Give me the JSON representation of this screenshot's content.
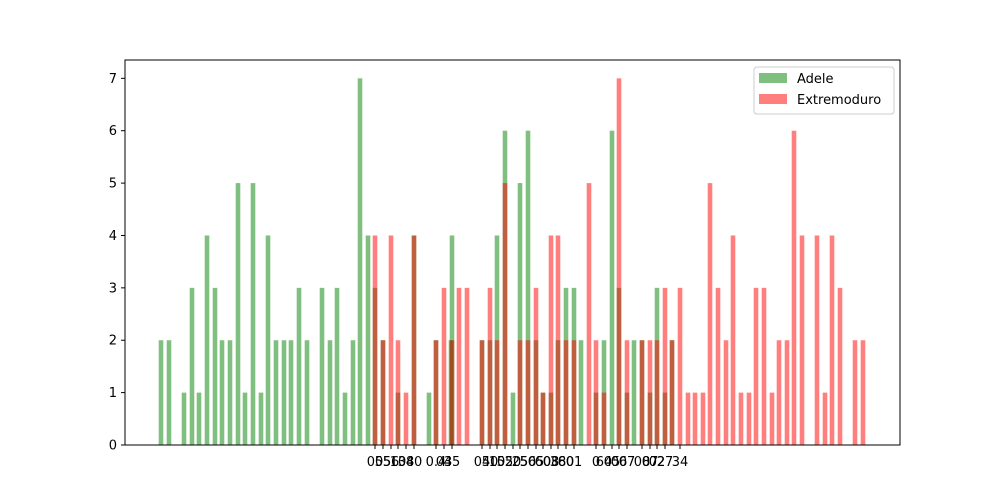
{
  "chart_data": {
    "type": "bar",
    "title": "",
    "xlabel": "",
    "ylabel": "",
    "ylim": [
      0,
      7.35
    ],
    "yticks": [
      0,
      1,
      2,
      3,
      4,
      5,
      6,
      7
    ],
    "legend": "top-right",
    "grid": false,
    "series": [
      {
        "name": "Adele",
        "color": "#008000",
        "opacity": 0.5,
        "values": [
          [
            161,
            2
          ],
          [
            169,
            2
          ],
          [
            184,
            1
          ],
          [
            192,
            3
          ],
          [
            199,
            1
          ],
          [
            207,
            4
          ],
          [
            215,
            3
          ],
          [
            222,
            2
          ],
          [
            230,
            2
          ],
          [
            238,
            5
          ],
          [
            245,
            1
          ],
          [
            253,
            5
          ],
          [
            261,
            1
          ],
          [
            268,
            4
          ],
          [
            276,
            2
          ],
          [
            284,
            2
          ],
          [
            291,
            2
          ],
          [
            299,
            3
          ],
          [
            307,
            2
          ],
          [
            322,
            3
          ],
          [
            330,
            2
          ],
          [
            337,
            3
          ],
          [
            345,
            1
          ],
          [
            353,
            2
          ],
          [
            360,
            7
          ],
          [
            368,
            4
          ],
          [
            375,
            3
          ],
          [
            383,
            2
          ],
          [
            398,
            1
          ],
          [
            414,
            4
          ],
          [
            429,
            1
          ],
          [
            436,
            2
          ],
          [
            451,
            2
          ],
          [
            452,
            4
          ],
          [
            482,
            2
          ],
          [
            490,
            2
          ],
          [
            497,
            4
          ],
          [
            505,
            6
          ],
          [
            513,
            1
          ],
          [
            520,
            5
          ],
          [
            528,
            6
          ],
          [
            536,
            2
          ],
          [
            543,
            1
          ],
          [
            551,
            1
          ],
          [
            558,
            2
          ],
          [
            566,
            3
          ],
          [
            574,
            3
          ],
          [
            581,
            2
          ],
          [
            596,
            1
          ],
          [
            604,
            2
          ],
          [
            612,
            6
          ],
          [
            619,
            3
          ],
          [
            627,
            1
          ],
          [
            634,
            2
          ],
          [
            642,
            2
          ],
          [
            650,
            1
          ],
          [
            657,
            3
          ],
          [
            665,
            1
          ],
          [
            672,
            2
          ]
        ]
      },
      {
        "name": "Extremoduro",
        "color": "#ff0000",
        "opacity": 0.5,
        "values": [
          [
            375,
            4
          ],
          [
            383,
            2
          ],
          [
            391,
            4
          ],
          [
            398,
            2
          ],
          [
            406,
            1
          ],
          [
            414,
            4
          ],
          [
            436,
            2
          ],
          [
            444,
            3
          ],
          [
            452,
            2
          ],
          [
            459,
            3
          ],
          [
            467,
            3
          ],
          [
            482,
            2
          ],
          [
            490,
            3
          ],
          [
            497,
            2
          ],
          [
            505,
            5
          ],
          [
            520,
            2
          ],
          [
            528,
            2
          ],
          [
            536,
            3
          ],
          [
            543,
            1
          ],
          [
            551,
            4
          ],
          [
            558,
            4
          ],
          [
            566,
            2
          ],
          [
            574,
            2
          ],
          [
            589,
            5
          ],
          [
            596,
            2
          ],
          [
            604,
            1
          ],
          [
            619,
            7
          ],
          [
            627,
            2
          ],
          [
            642,
            2
          ],
          [
            650,
            2
          ],
          [
            657,
            2
          ],
          [
            665,
            3
          ],
          [
            672,
            2
          ],
          [
            680,
            3
          ],
          [
            688,
            1
          ],
          [
            695,
            1
          ],
          [
            703,
            1
          ],
          [
            710,
            5
          ],
          [
            718,
            3
          ],
          [
            726,
            2
          ],
          [
            733,
            4
          ],
          [
            741,
            1
          ],
          [
            749,
            1
          ],
          [
            756,
            3
          ],
          [
            764,
            3
          ],
          [
            772,
            1
          ],
          [
            779,
            2
          ],
          [
            787,
            2
          ],
          [
            794,
            6
          ],
          [
            802,
            4
          ],
          [
            817,
            4
          ],
          [
            825,
            1
          ],
          [
            832,
            4
          ],
          [
            840,
            3
          ],
          [
            855,
            2
          ],
          [
            863,
            2
          ]
        ]
      }
    ],
    "xtick_labels": [
      {
        "pos": 375,
        "label": "00"
      },
      {
        "pos": 383,
        "label": "55"
      },
      {
        "pos": 391,
        "label": "56"
      },
      {
        "pos": 398,
        "label": "10"
      },
      {
        "pos": 406,
        "label": "38"
      },
      {
        "pos": 414,
        "label": "40"
      },
      {
        "pos": 436,
        "label": "0.4"
      },
      {
        "pos": 444,
        "label": "03"
      },
      {
        "pos": 452,
        "label": "45"
      },
      {
        "pos": 482,
        "label": "04"
      },
      {
        "pos": 490,
        "label": "50"
      },
      {
        "pos": 497,
        "label": "10"
      },
      {
        "pos": 505,
        "label": "55"
      },
      {
        "pos": 513,
        "label": "20"
      },
      {
        "pos": 520,
        "label": "25"
      },
      {
        "pos": 528,
        "label": "56"
      },
      {
        "pos": 536,
        "label": "05"
      },
      {
        "pos": 543,
        "label": "60"
      },
      {
        "pos": 551,
        "label": "08"
      },
      {
        "pos": 558,
        "label": "38"
      },
      {
        "pos": 566,
        "label": "60"
      },
      {
        "pos": 574,
        "label": "01"
      },
      {
        "pos": 596,
        "label": "0"
      },
      {
        "pos": 604,
        "label": "64"
      },
      {
        "pos": 612,
        "label": "05"
      },
      {
        "pos": 619,
        "label": "06"
      },
      {
        "pos": 627,
        "label": "07"
      },
      {
        "pos": 642,
        "label": "08"
      },
      {
        "pos": 650,
        "label": "07"
      },
      {
        "pos": 657,
        "label": "02"
      },
      {
        "pos": 665,
        "label": "27"
      },
      {
        "pos": 680,
        "label": "34"
      }
    ]
  }
}
